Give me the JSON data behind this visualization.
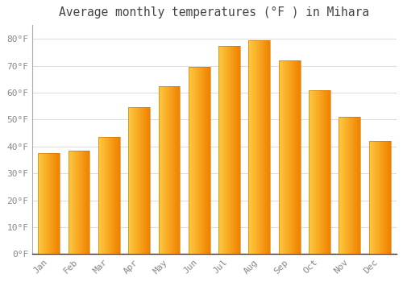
{
  "title": "Average monthly temperatures (°F ) in Mihara",
  "months": [
    "Jan",
    "Feb",
    "Mar",
    "Apr",
    "May",
    "Jun",
    "Jul",
    "Aug",
    "Sep",
    "Oct",
    "Nov",
    "Dec"
  ],
  "values": [
    37.5,
    38.5,
    43.5,
    54.5,
    62.5,
    69.5,
    77.5,
    79.5,
    72.0,
    61.0,
    51.0,
    42.0
  ],
  "bar_color_left": "#FDC030",
  "bar_color_right": "#F5900A",
  "bar_color_mid": "#FDAD20",
  "background_color": "#FFFFFF",
  "plot_bg_color": "#FFFFFF",
  "grid_color": "#DDDDDD",
  "text_color": "#888888",
  "title_color": "#444444",
  "spine_color": "#AAAAAA",
  "ylim": [
    0,
    85
  ],
  "yticks": [
    0,
    10,
    20,
    30,
    40,
    50,
    60,
    70,
    80
  ],
  "ytick_labels": [
    "0°F",
    "10°F",
    "20°F",
    "30°F",
    "40°F",
    "50°F",
    "60°F",
    "70°F",
    "80°F"
  ],
  "title_fontsize": 10.5,
  "tick_fontsize": 8,
  "font_family": "monospace",
  "bar_width": 0.72
}
